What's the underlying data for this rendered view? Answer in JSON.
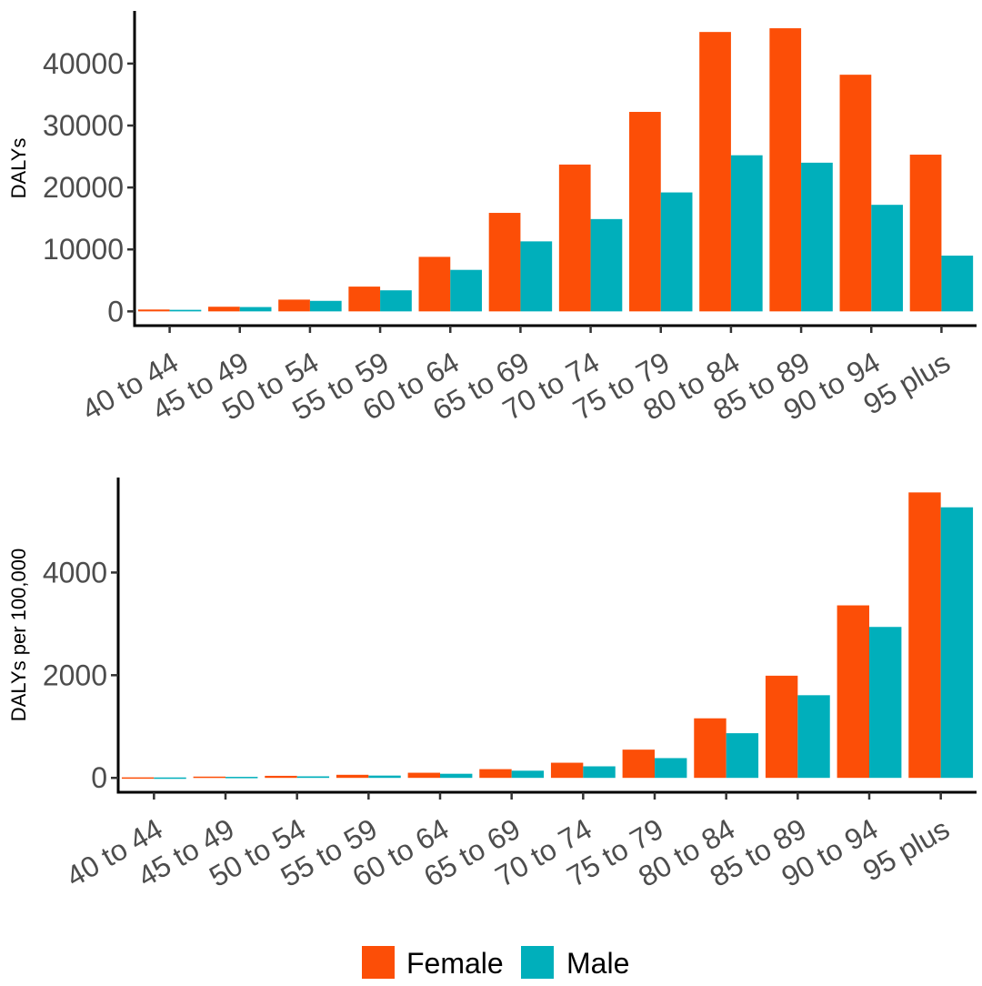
{
  "chart_data": [
    {
      "type": "bar",
      "categories": [
        "40 to 44",
        "45 to 49",
        "50 to 54",
        "55 to 59",
        "60 to 64",
        "65 to 69",
        "70 to 74",
        "75 to 79",
        "80 to 84",
        "85 to 89",
        "90 to 94",
        "95 plus"
      ],
      "series": [
        {
          "name": "Female",
          "values": [
            300,
            750,
            1900,
            4000,
            8800,
            15900,
            23700,
            32200,
            45100,
            45700,
            38200,
            25300
          ]
        },
        {
          "name": "Male",
          "values": [
            250,
            700,
            1700,
            3400,
            6700,
            11300,
            14900,
            19200,
            25200,
            24000,
            17200,
            9000
          ]
        }
      ],
      "title": "",
      "xlabel": "",
      "ylabel": "DALYs",
      "ylim": [
        -2300,
        48500
      ],
      "yticks": [
        0,
        10000,
        20000,
        30000,
        40000
      ],
      "ytick_labels": [
        "0",
        "10000",
        "20000",
        "30000",
        "40000"
      ],
      "grid": false
    },
    {
      "type": "bar",
      "categories": [
        "40 to 44",
        "45 to 49",
        "50 to 54",
        "55 to 59",
        "60 to 64",
        "65 to 69",
        "70 to 74",
        "75 to 79",
        "80 to 84",
        "85 to 89",
        "90 to 94",
        "95 plus"
      ],
      "series": [
        {
          "name": "Female",
          "values": [
            10,
            25,
            40,
            60,
            100,
            170,
            295,
            550,
            1160,
            1990,
            3360,
            5560
          ]
        },
        {
          "name": "Male",
          "values": [
            8,
            20,
            30,
            45,
            80,
            140,
            225,
            385,
            870,
            1610,
            2940,
            5270
          ]
        }
      ],
      "title": "",
      "xlabel": "",
      "ylabel": "DALYs per 100,000",
      "ylim": [
        -280,
        5850
      ],
      "yticks": [
        0,
        2000,
        4000
      ],
      "ytick_labels": [
        "0",
        "2000",
        "4000"
      ],
      "grid": false
    }
  ],
  "colors": {
    "Female": "#fc4e07",
    "Male": "#00afbb"
  },
  "legend": {
    "placement": "bottom-center",
    "items": [
      {
        "label": "Female",
        "color": "#fc4e07"
      },
      {
        "label": "Male",
        "color": "#00afbb"
      }
    ]
  }
}
